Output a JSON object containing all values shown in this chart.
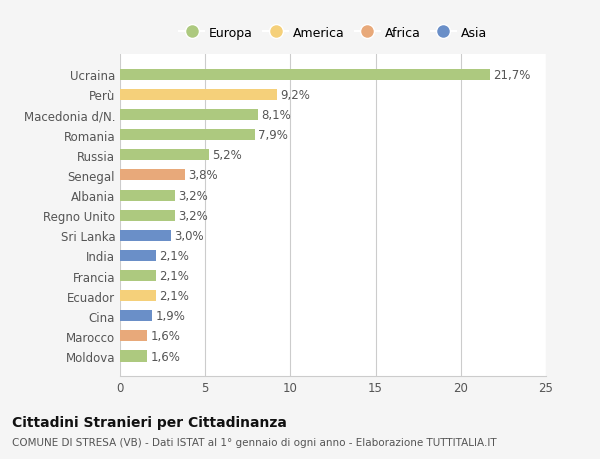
{
  "countries": [
    "Ucraina",
    "Perù",
    "Macedonia d/N.",
    "Romania",
    "Russia",
    "Senegal",
    "Albania",
    "Regno Unito",
    "Sri Lanka",
    "India",
    "Francia",
    "Ecuador",
    "Cina",
    "Marocco",
    "Moldova"
  ],
  "values": [
    21.7,
    9.2,
    8.1,
    7.9,
    5.2,
    3.8,
    3.2,
    3.2,
    3.0,
    2.1,
    2.1,
    2.1,
    1.9,
    1.6,
    1.6
  ],
  "labels": [
    "21,7%",
    "9,2%",
    "8,1%",
    "7,9%",
    "5,2%",
    "3,8%",
    "3,2%",
    "3,2%",
    "3,0%",
    "2,1%",
    "2,1%",
    "2,1%",
    "1,9%",
    "1,6%",
    "1,6%"
  ],
  "continent": [
    "Europa",
    "America",
    "Europa",
    "Europa",
    "Europa",
    "Africa",
    "Europa",
    "Europa",
    "Asia",
    "Asia",
    "Europa",
    "America",
    "Asia",
    "Africa",
    "Europa"
  ],
  "colors": {
    "Europa": "#adc97f",
    "America": "#f5d07a",
    "Africa": "#e8a97a",
    "Asia": "#6a8fc8"
  },
  "legend_order": [
    "Europa",
    "America",
    "Africa",
    "Asia"
  ],
  "xlim": [
    0,
    25
  ],
  "xticks": [
    0,
    5,
    10,
    15,
    20,
    25
  ],
  "background_color": "#f5f5f5",
  "bar_background": "#ffffff",
  "title": "Cittadini Stranieri per Cittadinanza",
  "subtitle": "COMUNE DI STRESA (VB) - Dati ISTAT al 1° gennaio di ogni anno - Elaborazione TUTTITALIA.IT",
  "grid_color": "#cccccc",
  "text_color": "#555555",
  "label_fontsize": 8.5,
  "tick_fontsize": 8.5
}
